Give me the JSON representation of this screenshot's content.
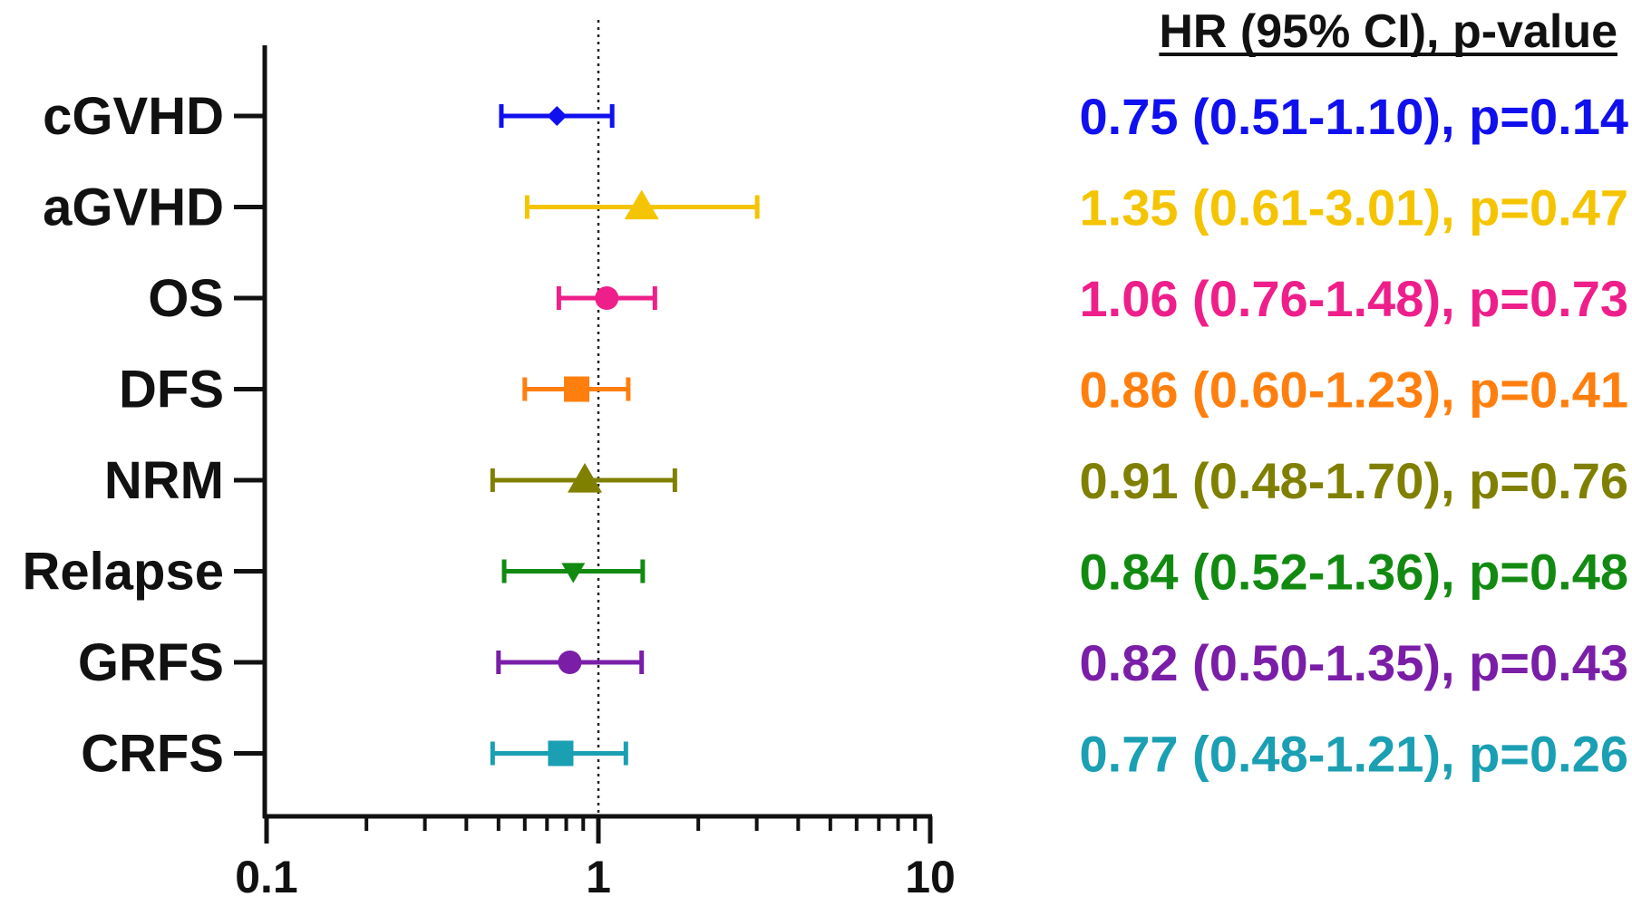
{
  "chart_data": {
    "type": "forest",
    "x_scale": "log",
    "xlim": [
      0.1,
      10
    ],
    "reference_line": 1,
    "x_ticks": [
      "0.1",
      "1",
      "10"
    ],
    "right_header": "HR (95% CI), p-value",
    "rows": [
      {
        "label": "cGVHD",
        "hr": 0.75,
        "lower": 0.51,
        "upper": 1.1,
        "marker": "diamond",
        "color": "#1010ee",
        "text": "0.75 (0.51-1.10), p=0.14"
      },
      {
        "label": "aGVHD",
        "hr": 1.35,
        "lower": 0.61,
        "upper": 3.01,
        "marker": "triangle-up",
        "color": "#f5c400",
        "text": "1.35 (0.61-3.01), p=0.47"
      },
      {
        "label": "OS",
        "hr": 1.06,
        "lower": 0.76,
        "upper": 1.48,
        "marker": "circle",
        "color": "#ee1f8a",
        "text": "1.06 (0.76-1.48), p=0.73"
      },
      {
        "label": "DFS",
        "hr": 0.86,
        "lower": 0.6,
        "upper": 1.23,
        "marker": "square",
        "color": "#ff7f0e",
        "text": "0.86 (0.60-1.23), p=0.41"
      },
      {
        "label": "NRM",
        "hr": 0.91,
        "lower": 0.48,
        "upper": 1.7,
        "marker": "triangle-up",
        "color": "#808000",
        "text": "0.91 (0.48-1.70), p=0.76"
      },
      {
        "label": "Relapse",
        "hr": 0.84,
        "lower": 0.52,
        "upper": 1.36,
        "marker": "triangle-down",
        "color": "#128a12",
        "text": "0.84 (0.52-1.36), p=0.48"
      },
      {
        "label": "GRFS",
        "hr": 0.82,
        "lower": 0.5,
        "upper": 1.35,
        "marker": "circle",
        "color": "#7a1ea8",
        "text": "0.82 (0.50-1.35), p=0.43"
      },
      {
        "label": "CRFS",
        "hr": 0.77,
        "lower": 0.48,
        "upper": 1.21,
        "marker": "square",
        "color": "#1a9fb3",
        "text": "0.77 (0.48-1.21), p=0.26"
      }
    ]
  }
}
